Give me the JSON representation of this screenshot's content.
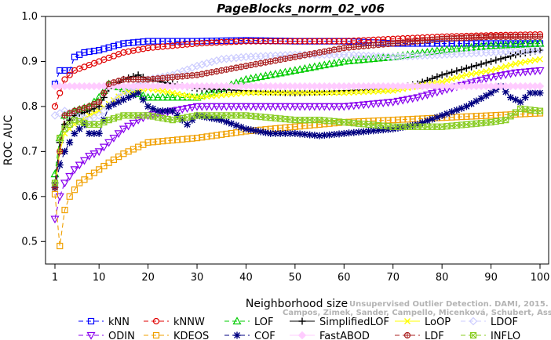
{
  "chart_data": {
    "type": "line",
    "title": "PageBlocks_norm_02_v06",
    "xlabel": "Neighborhood size",
    "ylabel": "ROC AUC",
    "xlim": [
      0,
      100
    ],
    "ylim": [
      0.45,
      1.0
    ],
    "x_ticks": [
      1,
      10,
      20,
      30,
      40,
      50,
      60,
      70,
      80,
      90,
      100
    ],
    "y_ticks": [
      0.5,
      0.6,
      0.7,
      0.8,
      0.9,
      1.0
    ],
    "grid": false,
    "legend_position": "bottom",
    "series": [
      {
        "name": "kNN",
        "color": "#0000ff",
        "marker": "square",
        "dash": "6,4",
        "points": [
          [
            1,
            0.85
          ],
          [
            2,
            0.88
          ],
          [
            4,
            0.88
          ],
          [
            5,
            0.91
          ],
          [
            7,
            0.92
          ],
          [
            10,
            0.925
          ],
          [
            15,
            0.94
          ],
          [
            20,
            0.945
          ],
          [
            30,
            0.945
          ],
          [
            40,
            0.947
          ],
          [
            50,
            0.945
          ],
          [
            60,
            0.945
          ],
          [
            70,
            0.94
          ],
          [
            80,
            0.94
          ],
          [
            90,
            0.94
          ],
          [
            100,
            0.94
          ]
        ]
      },
      {
        "name": "kNNW",
        "color": "#e00000",
        "marker": "circle",
        "dash": "6,4",
        "points": [
          [
            1,
            0.8
          ],
          [
            2,
            0.83
          ],
          [
            3,
            0.86
          ],
          [
            5,
            0.88
          ],
          [
            10,
            0.9
          ],
          [
            15,
            0.92
          ],
          [
            20,
            0.93
          ],
          [
            30,
            0.94
          ],
          [
            40,
            0.945
          ],
          [
            50,
            0.945
          ],
          [
            60,
            0.945
          ],
          [
            70,
            0.95
          ],
          [
            80,
            0.955
          ],
          [
            90,
            0.958
          ],
          [
            100,
            0.96
          ]
        ]
      },
      {
        "name": "LOF",
        "color": "#00cc00",
        "marker": "triangle-up",
        "dash": "6,4",
        "points": [
          [
            1,
            0.65
          ],
          [
            2,
            0.73
          ],
          [
            3,
            0.78
          ],
          [
            5,
            0.79
          ],
          [
            8,
            0.8
          ],
          [
            10,
            0.82
          ],
          [
            12,
            0.85
          ],
          [
            15,
            0.84
          ],
          [
            20,
            0.82
          ],
          [
            25,
            0.82
          ],
          [
            30,
            0.82
          ],
          [
            35,
            0.84
          ],
          [
            40,
            0.86
          ],
          [
            50,
            0.88
          ],
          [
            60,
            0.9
          ],
          [
            70,
            0.91
          ],
          [
            80,
            0.925
          ],
          [
            90,
            0.935
          ],
          [
            100,
            0.94
          ]
        ]
      },
      {
        "name": "SimplifiedLOF",
        "color": "#000000",
        "marker": "plus",
        "dash": "",
        "points": [
          [
            1,
            0.63
          ],
          [
            2,
            0.72
          ],
          [
            3,
            0.76
          ],
          [
            5,
            0.78
          ],
          [
            8,
            0.79
          ],
          [
            10,
            0.8
          ],
          [
            12,
            0.84
          ],
          [
            15,
            0.86
          ],
          [
            18,
            0.87
          ],
          [
            20,
            0.86
          ],
          [
            25,
            0.85
          ],
          [
            30,
            0.84
          ],
          [
            40,
            0.835
          ],
          [
            50,
            0.83
          ],
          [
            60,
            0.835
          ],
          [
            70,
            0.84
          ],
          [
            75,
            0.85
          ],
          [
            80,
            0.87
          ],
          [
            85,
            0.885
          ],
          [
            90,
            0.9
          ],
          [
            95,
            0.915
          ],
          [
            100,
            0.925
          ]
        ]
      },
      {
        "name": "LoOP",
        "color": "#ffff00",
        "marker": "x",
        "dash": "",
        "points": [
          [
            1,
            0.62
          ],
          [
            2,
            0.7
          ],
          [
            3,
            0.74
          ],
          [
            5,
            0.76
          ],
          [
            8,
            0.78
          ],
          [
            10,
            0.79
          ],
          [
            15,
            0.83
          ],
          [
            20,
            0.84
          ],
          [
            25,
            0.83
          ],
          [
            30,
            0.82
          ],
          [
            40,
            0.83
          ],
          [
            50,
            0.83
          ],
          [
            60,
            0.83
          ],
          [
            70,
            0.835
          ],
          [
            75,
            0.845
          ],
          [
            80,
            0.855
          ],
          [
            85,
            0.87
          ],
          [
            90,
            0.88
          ],
          [
            95,
            0.895
          ],
          [
            100,
            0.905
          ]
        ]
      },
      {
        "name": "LDOF",
        "color": "#ccccff",
        "marker": "diamond",
        "dash": "6,4",
        "points": [
          [
            1,
            0.78
          ],
          [
            3,
            0.79
          ],
          [
            5,
            0.78
          ],
          [
            8,
            0.77
          ],
          [
            10,
            0.78
          ],
          [
            12,
            0.8
          ],
          [
            15,
            0.83
          ],
          [
            20,
            0.86
          ],
          [
            25,
            0.87
          ],
          [
            30,
            0.89
          ],
          [
            35,
            0.905
          ],
          [
            40,
            0.91
          ],
          [
            50,
            0.915
          ],
          [
            60,
            0.915
          ],
          [
            70,
            0.91
          ],
          [
            80,
            0.915
          ],
          [
            90,
            0.92
          ],
          [
            100,
            0.925
          ]
        ]
      },
      {
        "name": "ODIN",
        "color": "#8800ee",
        "marker": "triangle-down",
        "dash": "6,4",
        "points": [
          [
            1,
            0.55
          ],
          [
            2,
            0.6
          ],
          [
            3,
            0.63
          ],
          [
            5,
            0.66
          ],
          [
            8,
            0.69
          ],
          [
            10,
            0.7
          ],
          [
            12,
            0.72
          ],
          [
            15,
            0.75
          ],
          [
            18,
            0.77
          ],
          [
            20,
            0.78
          ],
          [
            25,
            0.79
          ],
          [
            30,
            0.8
          ],
          [
            40,
            0.8
          ],
          [
            50,
            0.8
          ],
          [
            60,
            0.8
          ],
          [
            70,
            0.81
          ],
          [
            75,
            0.82
          ],
          [
            80,
            0.835
          ],
          [
            85,
            0.85
          ],
          [
            90,
            0.865
          ],
          [
            95,
            0.875
          ],
          [
            100,
            0.88
          ]
        ]
      },
      {
        "name": "KDEOS",
        "color": "#f0a000",
        "marker": "square",
        "dash": "6,4",
        "points": [
          [
            1,
            0.605
          ],
          [
            2,
            0.49
          ],
          [
            3,
            0.57
          ],
          [
            4,
            0.6
          ],
          [
            6,
            0.63
          ],
          [
            8,
            0.645
          ],
          [
            10,
            0.66
          ],
          [
            12,
            0.675
          ],
          [
            15,
            0.695
          ],
          [
            18,
            0.71
          ],
          [
            20,
            0.72
          ],
          [
            25,
            0.725
          ],
          [
            30,
            0.73
          ],
          [
            40,
            0.745
          ],
          [
            50,
            0.755
          ],
          [
            60,
            0.765
          ],
          [
            70,
            0.77
          ],
          [
            80,
            0.775
          ],
          [
            90,
            0.78
          ],
          [
            100,
            0.785
          ]
        ]
      },
      {
        "name": "COF",
        "color": "#000080",
        "marker": "asterisk",
        "dash": "6,4",
        "points": [
          [
            1,
            0.62
          ],
          [
            2,
            0.67
          ],
          [
            3,
            0.7
          ],
          [
            5,
            0.74
          ],
          [
            7,
            0.76
          ],
          [
            8,
            0.74
          ],
          [
            10,
            0.74
          ],
          [
            12,
            0.8
          ],
          [
            14,
            0.81
          ],
          [
            16,
            0.82
          ],
          [
            18,
            0.83
          ],
          [
            20,
            0.8
          ],
          [
            22,
            0.79
          ],
          [
            25,
            0.79
          ],
          [
            28,
            0.76
          ],
          [
            30,
            0.78
          ],
          [
            35,
            0.77
          ],
          [
            40,
            0.75
          ],
          [
            45,
            0.74
          ],
          [
            50,
            0.74
          ],
          [
            55,
            0.735
          ],
          [
            60,
            0.74
          ],
          [
            65,
            0.745
          ],
          [
            70,
            0.75
          ],
          [
            75,
            0.76
          ],
          [
            80,
            0.78
          ],
          [
            85,
            0.8
          ],
          [
            90,
            0.83
          ],
          [
            92,
            0.845
          ],
          [
            94,
            0.82
          ],
          [
            96,
            0.81
          ],
          [
            98,
            0.83
          ],
          [
            100,
            0.83
          ]
        ]
      },
      {
        "name": "FastABOD",
        "color": "#ffccff",
        "marker": "diamond-filled",
        "dash": "",
        "points": [
          [
            1,
            0.845
          ],
          [
            10,
            0.845
          ],
          [
            20,
            0.845
          ],
          [
            30,
            0.845
          ],
          [
            40,
            0.845
          ],
          [
            50,
            0.845
          ],
          [
            60,
            0.845
          ],
          [
            70,
            0.845
          ],
          [
            80,
            0.845
          ],
          [
            90,
            0.845
          ],
          [
            100,
            0.845
          ]
        ]
      },
      {
        "name": "LDF",
        "color": "#aa2222",
        "marker": "circle-plus",
        "dash": "6,4",
        "points": [
          [
            1,
            0.62
          ],
          [
            2,
            0.7
          ],
          [
            3,
            0.78
          ],
          [
            5,
            0.79
          ],
          [
            8,
            0.8
          ],
          [
            10,
            0.81
          ],
          [
            12,
            0.85
          ],
          [
            15,
            0.86
          ],
          [
            20,
            0.86
          ],
          [
            25,
            0.865
          ],
          [
            30,
            0.87
          ],
          [
            35,
            0.88
          ],
          [
            40,
            0.89
          ],
          [
            50,
            0.91
          ],
          [
            60,
            0.93
          ],
          [
            70,
            0.94
          ],
          [
            80,
            0.95
          ],
          [
            90,
            0.955
          ],
          [
            100,
            0.955
          ]
        ]
      },
      {
        "name": "INFLO",
        "color": "#88cc22",
        "marker": "square-x",
        "dash": "6,4",
        "points": [
          [
            1,
            0.63
          ],
          [
            2,
            0.73
          ],
          [
            3,
            0.75
          ],
          [
            5,
            0.77
          ],
          [
            8,
            0.76
          ],
          [
            10,
            0.76
          ],
          [
            12,
            0.77
          ],
          [
            15,
            0.78
          ],
          [
            20,
            0.78
          ],
          [
            25,
            0.77
          ],
          [
            30,
            0.78
          ],
          [
            35,
            0.78
          ],
          [
            40,
            0.78
          ],
          [
            45,
            0.775
          ],
          [
            50,
            0.77
          ],
          [
            55,
            0.77
          ],
          [
            60,
            0.765
          ],
          [
            65,
            0.76
          ],
          [
            70,
            0.755
          ],
          [
            75,
            0.755
          ],
          [
            80,
            0.755
          ],
          [
            85,
            0.76
          ],
          [
            90,
            0.765
          ],
          [
            93,
            0.77
          ],
          [
            96,
            0.795
          ],
          [
            100,
            0.79
          ]
        ]
      }
    ]
  },
  "watermark": {
    "line1": "Unsupervised Outlier Detection. DAMI, 2015.",
    "line2": "Campos, Zimek, Sander, Campello, Micenková, Schubert, Assent, Houle"
  }
}
